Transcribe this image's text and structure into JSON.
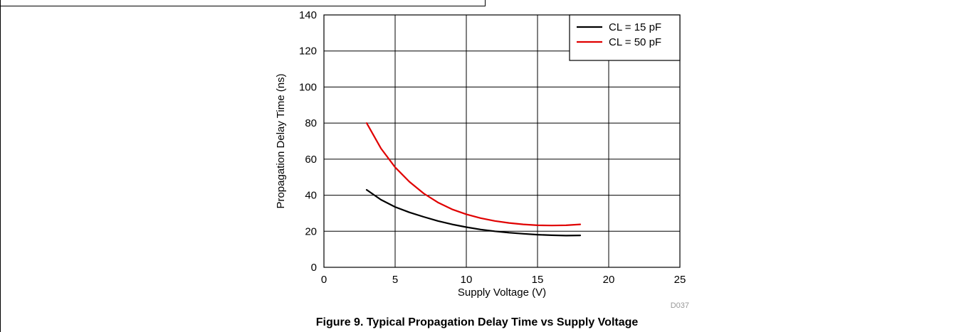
{
  "chart_data": {
    "type": "line",
    "caption": "Figure 9. Typical Propagation Delay Time vs Supply Voltage",
    "xlabel": "Supply Voltage (V)",
    "ylabel": "Propagation Delay Time (ns)",
    "xlim": [
      0,
      25
    ],
    "ylim": [
      0,
      140
    ],
    "xticks": [
      0,
      5,
      10,
      15,
      20,
      25
    ],
    "yticks": [
      0,
      20,
      40,
      60,
      80,
      100,
      120,
      140
    ],
    "grid": true,
    "legend_position": "top-right",
    "code": "D037",
    "series": [
      {
        "name": "CL = 15 pF",
        "color": "#000000",
        "x": [
          3,
          4,
          5,
          6,
          7,
          8,
          9,
          10,
          11,
          12,
          13,
          14,
          15,
          16,
          17,
          18
        ],
        "y": [
          43,
          37.5,
          33.5,
          30.5,
          28,
          25.7,
          23.8,
          22.3,
          21,
          20,
          19.2,
          18.6,
          18.1,
          17.8,
          17.6,
          17.7
        ]
      },
      {
        "name": "CL = 50 pF",
        "color": "#e00000",
        "x": [
          3,
          4,
          5,
          6,
          7,
          8,
          9,
          10,
          11,
          12,
          13,
          14,
          15,
          16,
          17,
          18
        ],
        "y": [
          80,
          66,
          55.5,
          47.5,
          41,
          36,
          32.2,
          29.4,
          27.3,
          25.7,
          24.6,
          23.8,
          23.3,
          23.2,
          23.3,
          23.8
        ]
      }
    ]
  }
}
